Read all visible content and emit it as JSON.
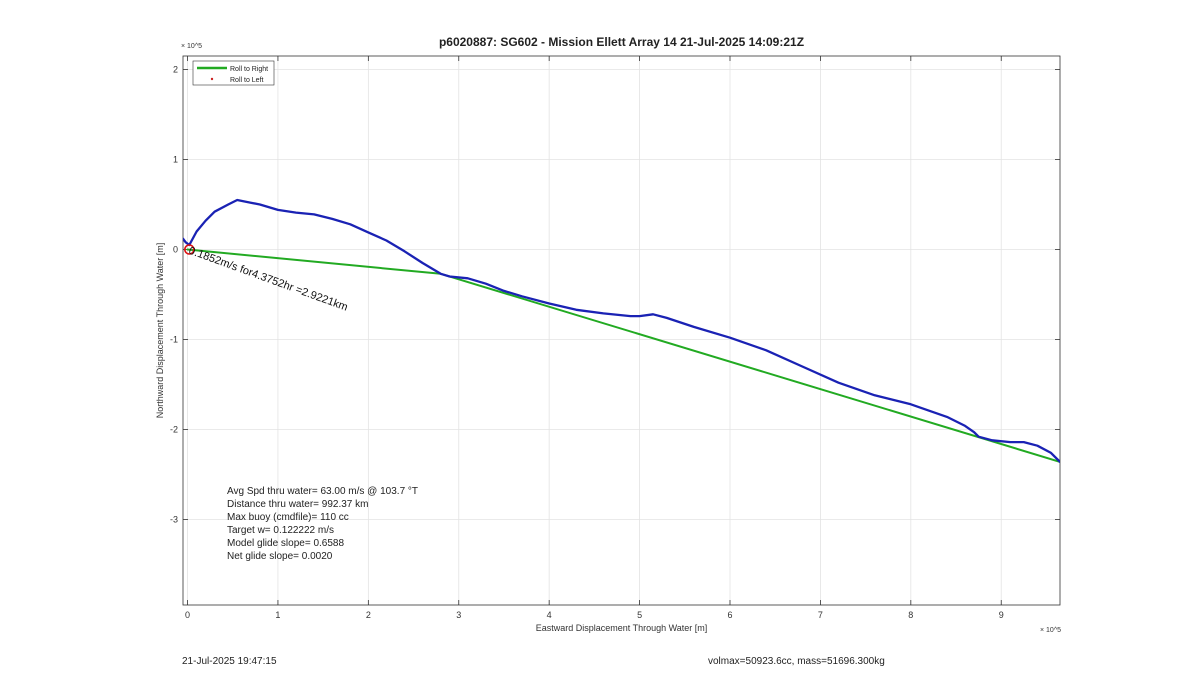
{
  "chart_data": {
    "type": "line",
    "title": "p6020887: SG602 - Mission Ellett Array 14 21-Jul-2025 14:09:21Z",
    "xlabel": "Eastward Displacement Through Water [m]",
    "ylabel": "Northward Displacement Through Water [m]",
    "x_exponent": "× 10^5",
    "y_exponent": "× 10^5",
    "xlim": [
      -0.05,
      9.65
    ],
    "ylim": [
      -3.95,
      2.15
    ],
    "xticks": [
      "0",
      "1",
      "2",
      "3",
      "4",
      "5",
      "6",
      "7",
      "8",
      "9"
    ],
    "yticks": [
      "2",
      "1",
      "0",
      "-1",
      "-2",
      "-3"
    ],
    "grid": true,
    "legend_position": "top-left",
    "legend": [
      {
        "label": "Roll to Right",
        "color": "#22aa22",
        "style": "line"
      },
      {
        "label": "Roll to Left",
        "color": "#cc2222",
        "style": "dot"
      }
    ],
    "series": [
      {
        "name": "Roll to Right",
        "color": "#22aa22",
        "x": [
          0.0,
          2.8,
          9.65
        ],
        "y": [
          0.0,
          -0.27,
          -2.36
        ]
      },
      {
        "color": "#1a22b4",
        "x": [
          -0.05,
          -0.02,
          0.02,
          0.1,
          0.2,
          0.3,
          0.45,
          0.55,
          0.7,
          0.8,
          1.0,
          1.2,
          1.4,
          1.6,
          1.8,
          2.0,
          2.2,
          2.4,
          2.6,
          2.8,
          2.9,
          3.1,
          3.3,
          3.5,
          3.7,
          4.0,
          4.3,
          4.6,
          4.9,
          5.0,
          5.15,
          5.3,
          5.6,
          6.0,
          6.4,
          6.8,
          7.2,
          7.6,
          8.0,
          8.4,
          8.6,
          8.7,
          8.75,
          8.9,
          9.1,
          9.25,
          9.4,
          9.55,
          9.65
        ],
        "y": [
          0.12,
          0.08,
          0.05,
          0.2,
          0.32,
          0.42,
          0.5,
          0.55,
          0.52,
          0.5,
          0.44,
          0.41,
          0.39,
          0.34,
          0.28,
          0.19,
          0.1,
          -0.02,
          -0.15,
          -0.27,
          -0.3,
          -0.32,
          -0.38,
          -0.46,
          -0.52,
          -0.6,
          -0.67,
          -0.71,
          -0.74,
          -0.74,
          -0.72,
          -0.76,
          -0.86,
          -0.98,
          -1.12,
          -1.3,
          -1.48,
          -1.62,
          -1.72,
          -1.86,
          -1.96,
          -2.03,
          -2.08,
          -2.12,
          -2.14,
          -2.14,
          -2.18,
          -2.26,
          -2.36
        ]
      }
    ],
    "annotations": [
      {
        "text": "0.1852m/s for4.3752hr =2.9221km",
        "x": 0.02,
        "y": 0.0,
        "rotation_deg": 20
      }
    ],
    "stats": [
      "Avg Spd thru water= 63.00 m/s @ 103.7 °T",
      "Distance thru water= 992.37 km",
      "Max buoy (cmdfile)= 110 cc",
      "Target w= 0.122222 m/s",
      "Model glide slope= 0.6588",
      "Net glide slope= 0.0020"
    ]
  },
  "footer": {
    "date": "21-Jul-2025 19:47:15",
    "info": "volmax=50923.6cc, mass=51696.300kg"
  }
}
